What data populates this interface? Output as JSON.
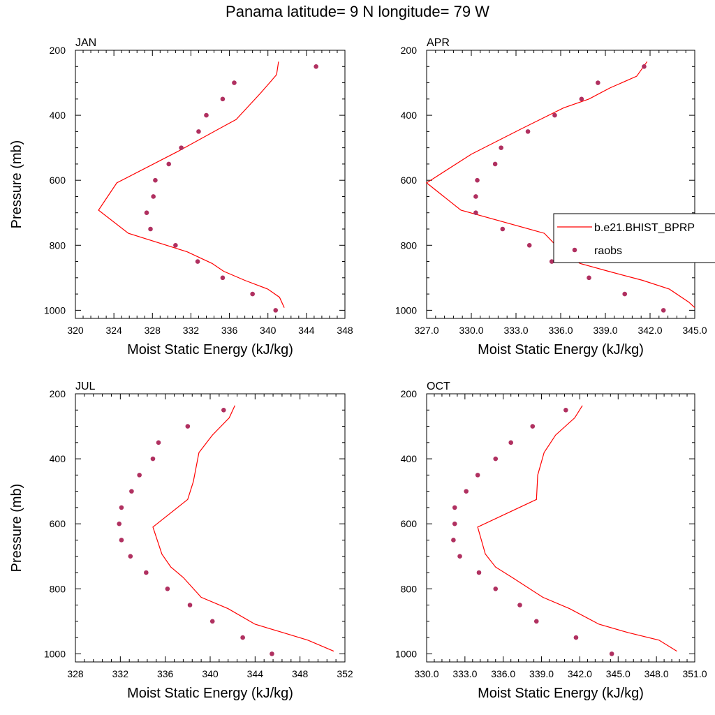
{
  "title": "Panama  latitude= 9 N longitude= 79 W",
  "colors": {
    "model_line": "#ff0000",
    "obs_marker": "#b03060",
    "axis": "#000000"
  },
  "legend": {
    "panel": "APR",
    "placement": "right-middle",
    "entries": [
      {
        "label": "b.e21.BHIST_BPRP",
        "style": "line"
      },
      {
        "label": "raobs",
        "style": "marker"
      }
    ]
  },
  "chart_data": [
    {
      "type": "line",
      "panel": "JAN",
      "xlabel": "Moist Static Energy (kJ/kg)",
      "ylabel": "Pressure (mb)",
      "xlim": [
        320,
        348
      ],
      "ylim": [
        1025,
        200
      ],
      "xticks": [
        "320",
        "324",
        "328",
        "332",
        "336",
        "340",
        "344",
        "348"
      ],
      "xtick_values": [
        320,
        324,
        328,
        332,
        336,
        340,
        344,
        348
      ],
      "yticks": [
        "200",
        "400",
        "600",
        "800",
        "1000"
      ],
      "ytick_values": [
        200,
        400,
        600,
        800,
        1000
      ],
      "series": [
        {
          "name": "b.e21.BHIST_BPRP",
          "style": "line",
          "points": [
            [
              341.7,
              992
            ],
            [
              341.2,
              960
            ],
            [
              340,
              935
            ],
            [
              337.6,
              908
            ],
            [
              335.4,
              880
            ],
            [
              334.2,
              856
            ],
            [
              331.6,
              820
            ],
            [
              325.5,
              763
            ],
            [
              322.4,
              692
            ],
            [
              324.3,
              608
            ],
            [
              330.6,
              512
            ],
            [
              334.9,
              442
            ],
            [
              336.7,
              413
            ],
            [
              339.2,
              333
            ],
            [
              340.2,
              299
            ],
            [
              340.9,
              275
            ],
            [
              341.1,
              235
            ]
          ]
        },
        {
          "name": "raobs",
          "style": "marker",
          "points": [
            [
              345,
              250
            ],
            [
              336.5,
              300
            ],
            [
              335.3,
              350
            ],
            [
              333.6,
              400
            ],
            [
              332.8,
              450
            ],
            [
              331,
              500
            ],
            [
              329.7,
              550
            ],
            [
              328.3,
              600
            ],
            [
              328.1,
              650
            ],
            [
              327.4,
              700
            ],
            [
              327.8,
              750
            ],
            [
              330.4,
              800
            ],
            [
              332.7,
              850
            ],
            [
              335.3,
              900
            ],
            [
              338.4,
              950
            ],
            [
              340.8,
              1000
            ]
          ]
        }
      ]
    },
    {
      "type": "line",
      "panel": "APR",
      "xlabel": "Moist Static Energy (kJ/kg)",
      "ylabel": "",
      "xlim": [
        327,
        345
      ],
      "ylim": [
        1025,
        200
      ],
      "xticks": [
        "327.0",
        "330.0",
        "333.0",
        "336.0",
        "339.0",
        "342.0",
        "345.0"
      ],
      "xtick_values": [
        327,
        330,
        333,
        336,
        339,
        342,
        345
      ],
      "yticks": [
        "200",
        "400",
        "600",
        "800",
        "1000"
      ],
      "ytick_values": [
        200,
        400,
        600,
        800,
        1000
      ],
      "series": [
        {
          "name": "b.e21.BHIST_BPRP",
          "style": "line",
          "points": [
            [
              345,
              992
            ],
            [
              344.6,
              975
            ],
            [
              343.3,
              935
            ],
            [
              341.5,
              908
            ],
            [
              339.2,
              880
            ],
            [
              337.3,
              856
            ],
            [
              336.1,
              820
            ],
            [
              334.9,
              763
            ],
            [
              329.3,
              692
            ],
            [
              327,
              608
            ],
            [
              330,
              520
            ],
            [
              333.3,
              443
            ],
            [
              336.2,
              377
            ],
            [
              337.9,
              350
            ],
            [
              339.3,
              316
            ],
            [
              341.1,
              280
            ],
            [
              341.8,
              235
            ]
          ]
        },
        {
          "name": "raobs",
          "style": "marker",
          "points": [
            [
              341.6,
              250
            ],
            [
              338.5,
              300
            ],
            [
              337.4,
              350
            ],
            [
              335.6,
              400
            ],
            [
              333.8,
              450
            ],
            [
              332,
              500
            ],
            [
              331.6,
              550
            ],
            [
              330.4,
              600
            ],
            [
              330.3,
              650
            ],
            [
              330.3,
              700
            ],
            [
              332.1,
              750
            ],
            [
              333.9,
              800
            ],
            [
              335.4,
              850
            ],
            [
              337.9,
              900
            ],
            [
              340.3,
              950
            ],
            [
              342.9,
              1000
            ]
          ]
        }
      ]
    },
    {
      "type": "line",
      "panel": "JUL",
      "xlabel": "Moist Static Energy (kJ/kg)",
      "ylabel": "Pressure (mb)",
      "xlim": [
        328,
        352
      ],
      "ylim": [
        1025,
        200
      ],
      "xticks": [
        "328",
        "332",
        "336",
        "340",
        "344",
        "348",
        "352"
      ],
      "xtick_values": [
        328,
        332,
        336,
        340,
        344,
        348,
        352
      ],
      "yticks": [
        "200",
        "400",
        "600",
        "800",
        "1000"
      ],
      "ytick_values": [
        200,
        400,
        600,
        800,
        1000
      ],
      "series": [
        {
          "name": "b.e21.BHIST_BPRP",
          "style": "line",
          "points": [
            [
              351,
              992
            ],
            [
              348.7,
              958
            ],
            [
              346.5,
              935
            ],
            [
              344,
              909
            ],
            [
              341.6,
              861
            ],
            [
              339.2,
              826
            ],
            [
              337.6,
              765
            ],
            [
              336.5,
              733
            ],
            [
              335.7,
              693
            ],
            [
              334.9,
              610
            ],
            [
              338,
              525
            ],
            [
              338.5,
              470
            ],
            [
              339,
              381
            ],
            [
              340.2,
              327
            ],
            [
              341.7,
              274
            ],
            [
              342.2,
              236
            ]
          ]
        },
        {
          "name": "raobs",
          "style": "marker",
          "points": [
            [
              341.2,
              250
            ],
            [
              338,
              300
            ],
            [
              335.4,
              350
            ],
            [
              334.9,
              400
            ],
            [
              333.7,
              450
            ],
            [
              333,
              500
            ],
            [
              332.1,
              550
            ],
            [
              331.9,
              600
            ],
            [
              332.1,
              650
            ],
            [
              332.9,
              700
            ],
            [
              334.3,
              750
            ],
            [
              336.2,
              800
            ],
            [
              338.2,
              850
            ],
            [
              340.2,
              900
            ],
            [
              342.9,
              950
            ],
            [
              345.5,
              1000
            ]
          ]
        }
      ]
    },
    {
      "type": "line",
      "panel": "OCT",
      "xlabel": "Moist Static Energy (kJ/kg)",
      "ylabel": "",
      "xlim": [
        330,
        351
      ],
      "ylim": [
        1025,
        200
      ],
      "xticks": [
        "330.0",
        "333.0",
        "336.0",
        "339.0",
        "342.0",
        "345.0",
        "348.0",
        "351.0"
      ],
      "xtick_values": [
        330,
        333,
        336,
        339,
        342,
        345,
        348,
        351
      ],
      "yticks": [
        "200",
        "400",
        "600",
        "800",
        "1000"
      ],
      "ytick_values": [
        200,
        400,
        600,
        800,
        1000
      ],
      "series": [
        {
          "name": "b.e21.BHIST_BPRP",
          "style": "line",
          "points": [
            [
              349.6,
              992
            ],
            [
              348.2,
              958
            ],
            [
              345.8,
              935
            ],
            [
              343.5,
              909
            ],
            [
              341.2,
              861
            ],
            [
              339.1,
              826
            ],
            [
              336.7,
              765
            ],
            [
              335.4,
              733
            ],
            [
              334.6,
              693
            ],
            [
              334,
              610
            ],
            [
              338.6,
              525
            ],
            [
              338.7,
              450
            ],
            [
              339.2,
              381
            ],
            [
              340.1,
              327
            ],
            [
              341.6,
              274
            ],
            [
              342.2,
              236
            ]
          ]
        },
        {
          "name": "raobs",
          "style": "marker",
          "points": [
            [
              340.9,
              250
            ],
            [
              338.3,
              300
            ],
            [
              336.6,
              350
            ],
            [
              335.4,
              400
            ],
            [
              334,
              450
            ],
            [
              333.1,
              500
            ],
            [
              332.2,
              550
            ],
            [
              332.2,
              600
            ],
            [
              332.1,
              650
            ],
            [
              332.6,
              700
            ],
            [
              334.1,
              750
            ],
            [
              335.4,
              800
            ],
            [
              337.3,
              850
            ],
            [
              338.6,
              900
            ],
            [
              341.7,
              950
            ],
            [
              344.5,
              1000
            ]
          ]
        }
      ]
    }
  ]
}
